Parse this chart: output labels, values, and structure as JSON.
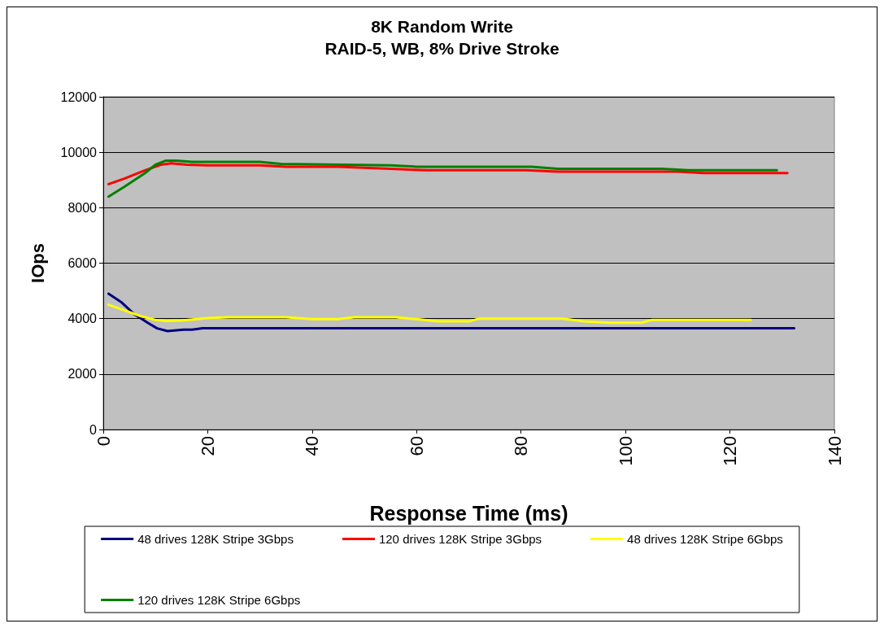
{
  "chart_data": {
    "type": "line",
    "title": "8K Random Write",
    "subtitle": "RAID-5, WB, 8% Drive Stroke",
    "xlabel": "Response Time (ms)",
    "ylabel": "IOps",
    "xlim": [
      0,
      140
    ],
    "xticks": [
      0,
      20,
      40,
      60,
      80,
      100,
      120,
      140
    ],
    "ylim": [
      0,
      12000
    ],
    "yticks": [
      0,
      2000,
      4000,
      6000,
      8000,
      10000,
      12000
    ],
    "grid": "y",
    "legend": "bottom",
    "marker": "none",
    "line_style": "solid",
    "series": [
      {
        "name": "48 drives 128K Stripe 3Gbps",
        "color": "#000080",
        "x": [
          1,
          3.4,
          6,
          8.5,
          10.3,
          12.3,
          15.4,
          17,
          19,
          40,
          80,
          120,
          132.3
        ],
        "values": [
          4900,
          4600,
          4150,
          3850,
          3650,
          3550,
          3600,
          3600,
          3650,
          3650,
          3650,
          3650,
          3650
        ]
      },
      {
        "name": "120 drives 128K Stripe 3Gbps",
        "color": "#ff0000",
        "x": [
          1,
          4,
          8,
          11,
          13,
          16,
          20,
          30,
          35,
          45,
          55,
          62,
          81,
          87,
          110,
          115,
          131
        ],
        "values": [
          8850,
          9050,
          9350,
          9550,
          9600,
          9550,
          9530,
          9530,
          9480,
          9480,
          9400,
          9350,
          9350,
          9300,
          9300,
          9250,
          9250
        ]
      },
      {
        "name": "48 drives 128K Stripe 6Gbps",
        "color": "#ffff00",
        "x": [
          1,
          4,
          7,
          10,
          12,
          15,
          20,
          24,
          30,
          35,
          40,
          45,
          48,
          56,
          60,
          64,
          70,
          72,
          80,
          88,
          92,
          97,
          103,
          105,
          124
        ],
        "values": [
          4500,
          4300,
          4100,
          3950,
          3920,
          3930,
          4020,
          4050,
          4050,
          4050,
          3980,
          3980,
          4050,
          4050,
          3980,
          3900,
          3900,
          4000,
          4000,
          4000,
          3900,
          3850,
          3850,
          3950,
          3950
        ]
      },
      {
        "name": "120 drives 128K Stripe 6Gbps",
        "color": "#008000",
        "x": [
          1,
          4,
          8,
          10,
          12,
          14,
          17,
          30,
          34,
          55,
          60,
          82,
          87,
          107,
          112,
          129
        ],
        "values": [
          8400,
          8750,
          9250,
          9550,
          9700,
          9700,
          9650,
          9650,
          9580,
          9530,
          9480,
          9480,
          9400,
          9400,
          9350,
          9350
        ]
      }
    ]
  }
}
